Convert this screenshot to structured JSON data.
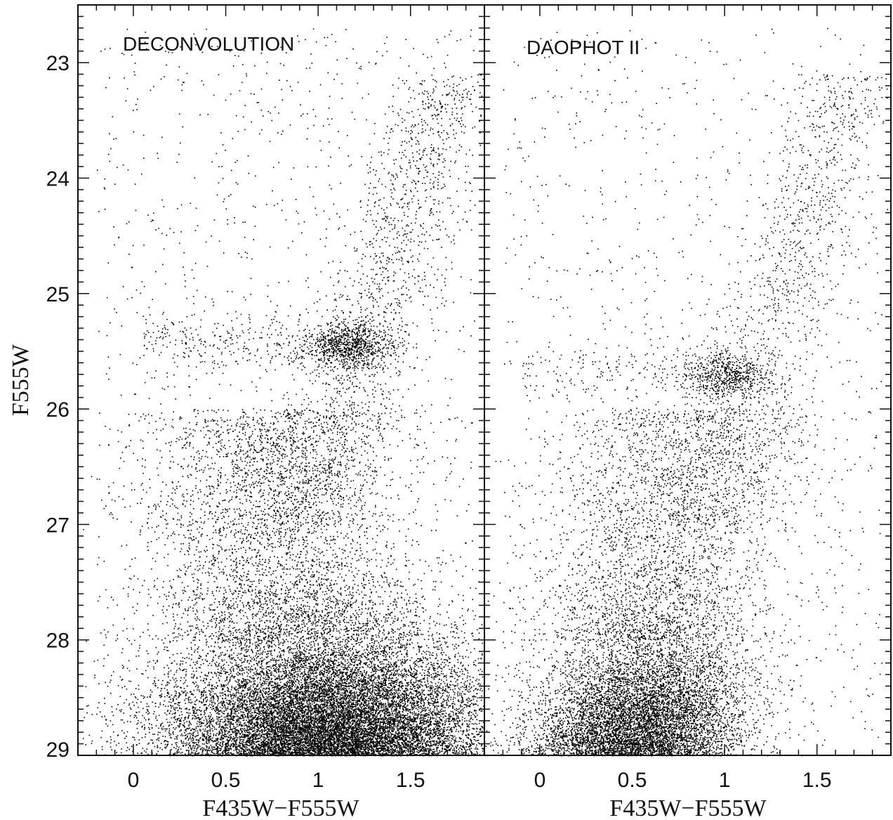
{
  "chart_data": [
    {
      "type": "scatter",
      "panel_label": "DECONVOLUTION",
      "xlabel": "F435W−F555W",
      "ylabel": "F555W",
      "xlim": [
        -0.3,
        1.9
      ],
      "ylim": [
        29.0,
        22.5
      ],
      "y_inverted": true,
      "x_ticks": [
        0,
        0.5,
        1,
        1.5
      ],
      "x_tick_labels": [
        "0",
        "0.5",
        "1",
        "1.5"
      ],
      "y_ticks": [
        23,
        24,
        25,
        26,
        27,
        28,
        29
      ],
      "y_tick_labels": [
        "23",
        "24",
        "25",
        "26",
        "27",
        "28",
        "29"
      ],
      "point_color": "#000000",
      "series": [
        {
          "features": [
            {
              "feature": "main sequence / faint bulk",
              "x_range": [
                -0.3,
                1.9
              ],
              "y_range": [
                27.5,
                29.0
              ],
              "density": "very high",
              "center": [
                1.05,
                28.6
              ]
            },
            {
              "feature": "red giant branch",
              "x_range": [
                0.9,
                1.8
              ],
              "y_range": [
                23.0,
                27.0
              ],
              "density": "moderate"
            },
            {
              "feature": "red clump",
              "center": [
                1.15,
                25.45
              ],
              "density": "high"
            },
            {
              "feature": "horizontal branch blue extension",
              "x_range": [
                0.05,
                0.9
              ],
              "y_range": [
                25.2,
                25.6
              ],
              "density": "low"
            }
          ]
        }
      ]
    },
    {
      "type": "scatter",
      "panel_label": "DAOPHOT II",
      "xlabel": "F435W−F555W",
      "xlim": [
        -0.3,
        1.9
      ],
      "ylim": [
        29.0,
        22.5
      ],
      "y_inverted": true,
      "x_ticks": [
        0,
        0.5,
        1,
        1.5
      ],
      "x_tick_labels": [
        "0",
        "0.5",
        "1",
        "1.5"
      ],
      "point_color": "#000000",
      "series": [
        {
          "features": [
            {
              "feature": "main sequence / faint bulk",
              "x_range": [
                -0.3,
                1.9
              ],
              "y_range": [
                27.5,
                29.0
              ],
              "density": "high",
              "center": [
                0.55,
                28.3
              ]
            },
            {
              "feature": "red giant branch",
              "x_range": [
                0.9,
                1.7
              ],
              "y_range": [
                23.4,
                27.0
              ],
              "density": "moderate"
            },
            {
              "feature": "red clump",
              "center": [
                1.0,
                25.7
              ],
              "density": "high"
            },
            {
              "feature": "horizontal branch blue extension",
              "x_range": [
                -0.1,
                0.85
              ],
              "y_range": [
                25.5,
                25.8
              ],
              "density": "low"
            }
          ]
        }
      ]
    }
  ]
}
